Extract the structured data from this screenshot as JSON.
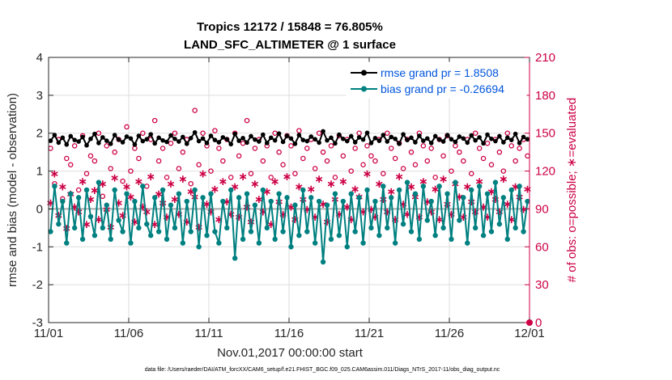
{
  "chart_data": {
    "type": "line",
    "title": "Tropics 12172 / 15848 = 76.805%",
    "subtitle": "LAND_SFC_ALTIMETER @ 1 surface",
    "xlabel": "Nov.01,2017 00:00:00 start",
    "ylabel": "rmse and bias (model - observation)",
    "ylabel_right": "# of obs: o=possible; ∗=evaluated",
    "x_ticks": [
      "11/01",
      "11/06",
      "11/11",
      "11/16",
      "11/21",
      "11/26",
      "12/01"
    ],
    "x_tick_days": [
      0,
      5,
      10,
      15,
      20,
      25,
      30
    ],
    "xlim": [
      0,
      30
    ],
    "ylim": [
      -3,
      4
    ],
    "ylim_right": [
      0,
      210
    ],
    "y_ticks": [
      "-3",
      "-2",
      "-1",
      "0",
      "1",
      "2",
      "3",
      "4"
    ],
    "y_ticks_right": [
      "0",
      "30",
      "60",
      "90",
      "120",
      "150",
      "180",
      "210"
    ],
    "legend": {
      "rmse_label": "rmse grand pr = 1.8508",
      "bias_label": "bias grand pr = -0.26694",
      "location": "top-right"
    },
    "colors": {
      "rmse": "#000000",
      "bias": "#008080",
      "obs": "#cc0044",
      "zero_line": "#aaaaaa",
      "grid": "#dedede"
    },
    "x_step_days": 0.25,
    "rmse": [
      1.8,
      1.95,
      1.75,
      1.88,
      1.7,
      1.92,
      1.82,
      1.78,
      1.9,
      1.68,
      1.85,
      1.98,
      1.74,
      1.89,
      1.8,
      1.72,
      1.95,
      1.83,
      1.76,
      1.91,
      1.86,
      1.7,
      1.93,
      1.79,
      1.84,
      1.97,
      1.73,
      1.88,
      1.81,
      1.77,
      1.94,
      1.85,
      1.78,
      1.9,
      1.72,
      1.87,
      2.02,
      1.79,
      1.86,
      1.74,
      1.93,
      1.82,
      1.76,
      1.89,
      1.84,
      1.71,
      1.98,
      1.8,
      1.87,
      1.75,
      1.92,
      1.83,
      1.78,
      1.96,
      1.74,
      1.88,
      1.81,
      1.99,
      1.77,
      1.93,
      1.86,
      1.72,
      1.95,
      1.82,
      1.79,
      1.91,
      1.84,
      1.75,
      2.05,
      1.81,
      1.88,
      1.73,
      1.96,
      1.85,
      1.79,
      1.92,
      1.76,
      1.89,
      1.83,
      2.01,
      1.74,
      1.87,
      1.8,
      1.95,
      1.78,
      1.9,
      1.85,
      1.72,
      1.97,
      1.82,
      1.88,
      1.76,
      1.93,
      1.8,
      1.86,
      1.74,
      1.92,
      1.83,
      1.78,
      1.95,
      1.84,
      1.77,
      1.91,
      1.86,
      1.75,
      1.94,
      1.81,
      1.89,
      1.73,
      1.96,
      1.85,
      1.79,
      1.92,
      1.76,
      1.88,
      1.82,
      1.98,
      1.74,
      1.9,
      1.84
    ],
    "bias": [
      -0.6,
      0.6,
      -0.4,
      0.2,
      -0.9,
      0.4,
      -0.5,
      0.3,
      -0.8,
      0.5,
      -0.2,
      -0.7,
      0.7,
      -0.5,
      0.1,
      -0.8,
      0.5,
      -0.3,
      -0.6,
      0.4,
      -0.9,
      0.2,
      -0.5,
      0.6,
      -0.4,
      -0.7,
      0.3,
      -0.6,
      0.5,
      -0.8,
      0.1,
      -0.5,
      0.4,
      -0.9,
      0.2,
      -0.6,
      0.5,
      -1.0,
      0.3,
      -0.7,
      0.4,
      -0.6,
      -0.9,
      0.2,
      -0.5,
      0.5,
      -1.3,
      0.3,
      -0.8,
      0.4,
      -0.6,
      0.1,
      -0.9,
      0.5,
      -0.5,
      0.2,
      -0.8,
      0.4,
      -0.6,
      0.3,
      -1.0,
      0.1,
      -0.7,
      0.5,
      -0.6,
      0.3,
      -0.9,
      0.2,
      -1.4,
      0.1,
      -0.8,
      0.4,
      -0.7,
      0.2,
      -1.0,
      0.4,
      -0.6,
      0.3,
      -0.9,
      0.5,
      -0.5,
      0.2,
      -0.7,
      0.6,
      -0.5,
      0.3,
      -0.9,
      0.5,
      -0.4,
      0.7,
      -0.6,
      0.4,
      -0.8,
      0.6,
      -0.3,
      0.2,
      -0.7,
      0.6,
      -0.5,
      0.4,
      -0.8,
      0.7,
      -0.3,
      0.3,
      -0.9,
      0.5,
      -0.5,
      0.6,
      -0.7,
      0.4,
      -0.6,
      0.7,
      -0.4,
      0.3,
      -0.8,
      0.5,
      -0.5,
      0.6,
      -0.6,
      0.2
    ],
    "possible": [
      138,
      110,
      145,
      98,
      130,
      125,
      140,
      105,
      148,
      118,
      132,
      128,
      150,
      100,
      140,
      122,
      135,
      145,
      112,
      155,
      120,
      138,
      130,
      150,
      108,
      145,
      160,
      128,
      138,
      115,
      142,
      150,
      122,
      135,
      145,
      110,
      168,
      125,
      150,
      140,
      120,
      152,
      138,
      128,
      145,
      115,
      150,
      132,
      142,
      160,
      118,
      138,
      145,
      128,
      140,
      115,
      150,
      135,
      125,
      148,
      140,
      118,
      152,
      130,
      138,
      145,
      122,
      150,
      135,
      128,
      140,
      115,
      148,
      132,
      145,
      120,
      138,
      150,
      125,
      140,
      132,
      128,
      145,
      118,
      150,
      138,
      130,
      142,
      122,
      145,
      135,
      125,
      150,
      140,
      128,
      138,
      115,
      145,
      132,
      148,
      120,
      140,
      135,
      128,
      145,
      118,
      150,
      138,
      130,
      142,
      125,
      145,
      135,
      120,
      150,
      140,
      128,
      138,
      145,
      132
    ],
    "evaluated": [
      95,
      118,
      85,
      108,
      75,
      102,
      92,
      88,
      112,
      78,
      98,
      105,
      82,
      110,
      90,
      76,
      115,
      95,
      85,
      108,
      100,
      80,
      112,
      92,
      88,
      116,
      78,
      102,
      95,
      84,
      110,
      98,
      86,
      114,
      80,
      104,
      100,
      76,
      118,
      94,
      88,
      106,
      82,
      112,
      96,
      86,
      108,
      84,
      116,
      92,
      80,
      110,
      98,
      88,
      104,
      78,
      112,
      96,
      86,
      116,
      92,
      82,
      108,
      98,
      90,
      106,
      84,
      114,
      94,
      80,
      110,
      98,
      86,
      112,
      92,
      82,
      106,
      100,
      88,
      118,
      90,
      84,
      110,
      98,
      88,
      104,
      82,
      116,
      94,
      86,
      108,
      100,
      84,
      112,
      96,
      88,
      106,
      82,
      114,
      94,
      86,
      110,
      100,
      84,
      108,
      96,
      88,
      112,
      92,
      84,
      104,
      98,
      88,
      114,
      94,
      82,
      108,
      100,
      90,
      106
    ]
  },
  "footnote": "data file: /Users/raeder/DAI/ATM_forcXX/CAM6_setup/f.e21.FHIST_BGC.f09_025.CAM6assim.011/Diags_NTrS_2017-11/obs_diag_output.nc"
}
